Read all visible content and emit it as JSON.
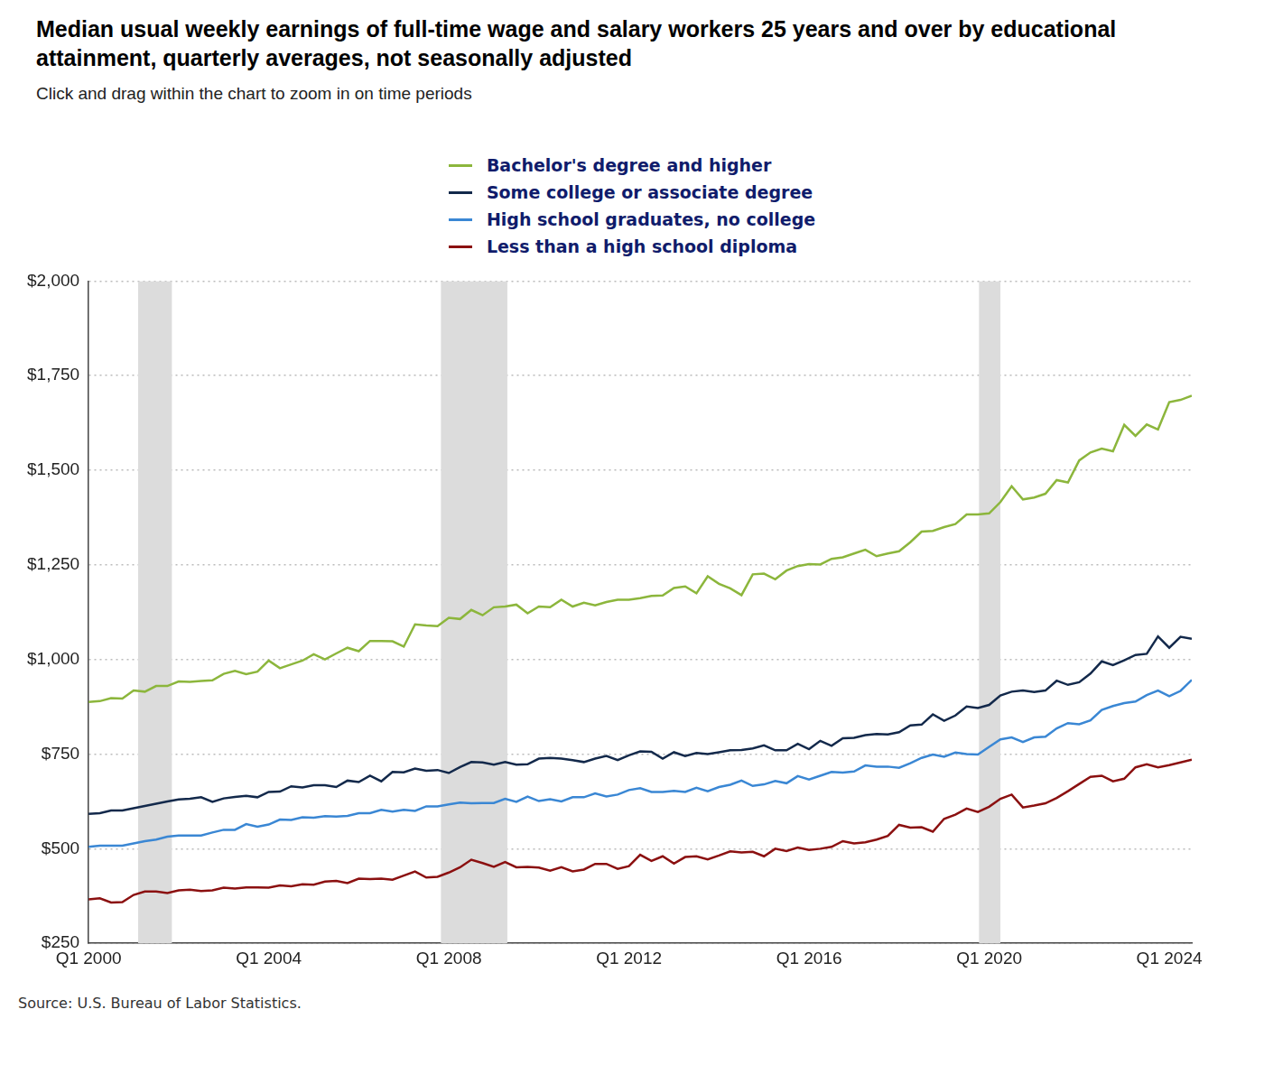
{
  "chart_data": {
    "type": "line",
    "title": "Median usual weekly earnings of full-time wage and salary workers 25 years and over by educational attainment, quarterly averages, not seasonally adjusted",
    "subtitle": "Click and drag within the chart to zoom in on time periods",
    "source": "Source: U.S. Bureau of Labor Statistics.",
    "categories": [
      "Q1 2000",
      null,
      null,
      null,
      null,
      null,
      null,
      null,
      null,
      null,
      null,
      null,
      null,
      null,
      null,
      null,
      "Q1 2004",
      null,
      null,
      null,
      null,
      null,
      null,
      null,
      null,
      null,
      null,
      null,
      null,
      null,
      null,
      null,
      "Q1 2008",
      null,
      null,
      null,
      null,
      null,
      null,
      null,
      null,
      null,
      null,
      null,
      null,
      null,
      null,
      null,
      "Q1 2012",
      null,
      null,
      null,
      null,
      null,
      null,
      null,
      null,
      null,
      null,
      null,
      null,
      null,
      null,
      null,
      "Q1 2016",
      null,
      null,
      null,
      null,
      null,
      null,
      null,
      null,
      null,
      null,
      null,
      null,
      null,
      null,
      null,
      "Q1 2020",
      null,
      null,
      null,
      null,
      null,
      null,
      null,
      null,
      null,
      null,
      null,
      null,
      null,
      null,
      null,
      "Q1 2024",
      null,
      null
    ],
    "series": [
      {
        "name": "Bachelor's degree and higher",
        "color": "#8cb63c",
        "values": [
          888,
          890,
          898,
          897,
          918,
          915,
          930,
          930,
          942,
          941,
          943,
          945,
          962,
          970,
          961,
          968,
          997,
          977,
          987,
          997,
          1014,
          1000,
          1016,
          1031,
          1022,
          1049,
          1049,
          1048,
          1034,
          1093,
          1090,
          1088,
          1110,
          1107,
          1131,
          1117,
          1138,
          1140,
          1145,
          1122,
          1140,
          1138,
          1158,
          1140,
          1150,
          1143,
          1152,
          1158,
          1158,
          1162,
          1168,
          1169,
          1189,
          1193,
          1175,
          1220,
          1200,
          1188,
          1170,
          1225,
          1227,
          1212,
          1235,
          1247,
          1252,
          1251,
          1266,
          1270,
          1280,
          1290,
          1273,
          1280,
          1286,
          1310,
          1338,
          1340,
          1350,
          1358,
          1383,
          1383,
          1386,
          1416,
          1458,
          1423,
          1428,
          1438,
          1474,
          1468,
          1526,
          1547,
          1557,
          1550,
          1620,
          1591,
          1621,
          1608,
          1680,
          1686,
          1697
        ]
      },
      {
        "name": "Some college or associate degree",
        "color": "#13294b",
        "values": [
          592,
          594,
          601,
          601,
          607,
          613,
          619,
          625,
          630,
          632,
          636,
          624,
          633,
          637,
          640,
          636,
          650,
          651,
          665,
          662,
          668,
          668,
          663,
          680,
          676,
          693,
          678,
          703,
          702,
          712,
          706,
          708,
          700,
          716,
          729,
          728,
          722,
          729,
          722,
          723,
          738,
          740,
          738,
          734,
          729,
          738,
          745,
          734,
          747,
          757,
          756,
          738,
          755,
          745,
          753,
          750,
          755,
          760,
          761,
          765,
          773,
          760,
          760,
          777,
          763,
          785,
          772,
          792,
          793,
          800,
          803,
          802,
          808,
          826,
          828,
          855,
          838,
          852,
          876,
          872,
          880,
          905,
          915,
          918,
          914,
          918,
          944,
          933,
          940,
          963,
          995,
          985,
          998,
          1012,
          1015,
          1061,
          1031,
          1060,
          1055
        ]
      },
      {
        "name": "High school graduates, no college",
        "color": "#3a87d4",
        "values": [
          505,
          508,
          508,
          508,
          514,
          520,
          524,
          532,
          535,
          535,
          535,
          543,
          550,
          550,
          565,
          558,
          564,
          577,
          576,
          583,
          582,
          586,
          585,
          587,
          594,
          594,
          603,
          598,
          603,
          600,
          612,
          612,
          617,
          622,
          620,
          621,
          621,
          632,
          624,
          638,
          626,
          631,
          625,
          636,
          636,
          646,
          638,
          643,
          655,
          660,
          650,
          650,
          653,
          650,
          661,
          652,
          663,
          669,
          680,
          666,
          670,
          679,
          673,
          692,
          683,
          693,
          703,
          701,
          704,
          720,
          717,
          717,
          714,
          726,
          740,
          749,
          743,
          754,
          750,
          749,
          769,
          789,
          794,
          782,
          794,
          796,
          818,
          832,
          829,
          839,
          867,
          877,
          885,
          889,
          906,
          918,
          903,
          917,
          946
        ]
      },
      {
        "name": "Less than a high school diploma",
        "color": "#8b1010",
        "values": [
          366,
          369,
          358,
          359,
          378,
          387,
          387,
          383,
          390,
          392,
          388,
          390,
          397,
          395,
          398,
          398,
          397,
          403,
          401,
          406,
          405,
          413,
          415,
          409,
          421,
          420,
          421,
          418,
          429,
          440,
          424,
          426,
          437,
          451,
          471,
          462,
          452,
          465,
          451,
          452,
          450,
          442,
          451,
          440,
          445,
          460,
          460,
          447,
          454,
          484,
          468,
          480,
          461,
          478,
          480,
          472,
          482,
          493,
          490,
          492,
          480,
          500,
          494,
          503,
          497,
          500,
          505,
          520,
          514,
          517,
          524,
          534,
          563,
          556,
          557,
          545,
          579,
          590,
          606,
          597,
          611,
          632,
          643,
          609,
          614,
          620,
          634,
          652,
          671,
          690,
          693,
          678,
          685,
          715,
          723,
          715,
          721,
          728,
          735
        ]
      }
    ],
    "shaded_periods": [
      {
        "start": 4.4,
        "end": 7.4
      },
      {
        "start": 31.3,
        "end": 37.2
      },
      {
        "start": 79.1,
        "end": 81.0
      }
    ],
    "ylim": [
      250,
      2000
    ],
    "yticks": [
      {
        "value": 250,
        "label": "$250"
      },
      {
        "value": 500,
        "label": "$500"
      },
      {
        "value": 750,
        "label": "$750"
      },
      {
        "value": 1000,
        "label": "$1,000"
      },
      {
        "value": 1250,
        "label": "$1,250"
      },
      {
        "value": 1500,
        "label": "$1,500"
      },
      {
        "value": 1750,
        "label": "$1,750"
      },
      {
        "value": 2000,
        "label": "$2,000"
      }
    ],
    "grid": true,
    "legend": "top"
  }
}
